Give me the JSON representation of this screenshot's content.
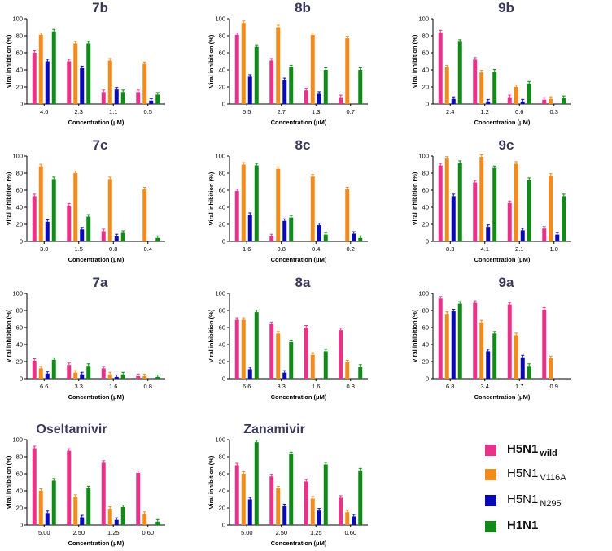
{
  "colors": {
    "H5N1_wild": "#e8338a",
    "H5N1_V116A": "#f28a1c",
    "H5N1_N295": "#0a0ab4",
    "H1N1": "#118a1a"
  },
  "legend": [
    {
      "main": "H5N1",
      "sub": "wild",
      "color": "#e8338a",
      "bold": true
    },
    {
      "main": "H5N1",
      "sub": "V116A",
      "color": "#f28a1c",
      "bold": false
    },
    {
      "main": "H5N1",
      "sub": "N295",
      "color": "#0a0ab4",
      "bold": false
    },
    {
      "main": "H1N1",
      "sub": "",
      "color": "#118a1a",
      "bold": true
    }
  ],
  "chart_data": [
    {
      "type": "bar",
      "title": "7b",
      "xlabel": "Concentration (μM)",
      "ylabel": "Viral inhibition (%)",
      "ylim": [
        0,
        100
      ],
      "yticks": [
        "0",
        "20",
        "40",
        "60",
        "80",
        "100"
      ],
      "categories": [
        "4.6",
        "2.3",
        "1.1",
        "0.5"
      ],
      "series": [
        {
          "name": "H5N1 wild",
          "values": [
            60,
            50,
            14,
            14
          ]
        },
        {
          "name": "H5N1 V116A",
          "values": [
            81,
            71,
            51,
            47
          ]
        },
        {
          "name": "H5N1 N295",
          "values": [
            50,
            42,
            17,
            4
          ]
        },
        {
          "name": "H1N1",
          "values": [
            85,
            71,
            14,
            11
          ]
        }
      ]
    },
    {
      "type": "bar",
      "title": "8b",
      "xlabel": "Concentration (μM)",
      "ylabel": "Viral inhibition (%)",
      "ylim": [
        0,
        100
      ],
      "yticks": [
        "0",
        "20",
        "40",
        "60",
        "80",
        "100"
      ],
      "categories": [
        "5.5",
        "2.7",
        "1.3",
        "0.7"
      ],
      "series": [
        {
          "name": "H5N1 wild",
          "values": [
            81,
            51,
            16,
            8
          ]
        },
        {
          "name": "H5N1 V116A",
          "values": [
            95,
            90,
            81,
            77
          ]
        },
        {
          "name": "H5N1 N295",
          "values": [
            32,
            28,
            12,
            0
          ]
        },
        {
          "name": "H1N1",
          "values": [
            67,
            43,
            40,
            40
          ]
        }
      ]
    },
    {
      "type": "bar",
      "title": "9b",
      "xlabel": "Concentration (μM)",
      "ylabel": "Viral inhibition (%)",
      "ylim": [
        0,
        100
      ],
      "yticks": [
        "0",
        "20",
        "40",
        "60",
        "80",
        "100"
      ],
      "categories": [
        "2.4",
        "1.2",
        "0.6",
        "0.3"
      ],
      "series": [
        {
          "name": "H5N1 wild",
          "values": [
            84,
            52,
            8,
            5
          ]
        },
        {
          "name": "H5N1 V116A",
          "values": [
            43,
            37,
            20,
            6
          ]
        },
        {
          "name": "H5N1 N295",
          "values": [
            6,
            3,
            3,
            0
          ]
        },
        {
          "name": "H1N1",
          "values": [
            73,
            38,
            24,
            7
          ]
        }
      ]
    },
    {
      "type": "bar",
      "title": "7c",
      "xlabel": "Concentration (μM)",
      "ylabel": "Viral inhibition (%)",
      "ylim": [
        0,
        100
      ],
      "yticks": [
        "0",
        "20",
        "40",
        "60",
        "80",
        "100"
      ],
      "categories": [
        "3.0",
        "1.5",
        "0.8",
        "0.4"
      ],
      "series": [
        {
          "name": "H5N1 wild",
          "values": [
            53,
            42,
            12,
            0
          ]
        },
        {
          "name": "H5N1 V116A",
          "values": [
            88,
            80,
            73,
            61
          ]
        },
        {
          "name": "H5N1 N295",
          "values": [
            23,
            14,
            6,
            0
          ]
        },
        {
          "name": "H1N1",
          "values": [
            73,
            29,
            10,
            4
          ]
        }
      ]
    },
    {
      "type": "bar",
      "title": "8c",
      "xlabel": "Concentration (μM)",
      "ylabel": "Viral inhibition (%)",
      "ylim": [
        0,
        100
      ],
      "yticks": [
        "0",
        "20",
        "40",
        "60",
        "80",
        "100"
      ],
      "categories": [
        "1.6",
        "0.8",
        "0.4",
        "0.2"
      ],
      "series": [
        {
          "name": "H5N1 wild",
          "values": [
            59,
            6,
            0,
            0
          ]
        },
        {
          "name": "H5N1 V116A",
          "values": [
            90,
            85,
            76,
            61
          ]
        },
        {
          "name": "H5N1 N295",
          "values": [
            31,
            24,
            19,
            9
          ]
        },
        {
          "name": "H1N1",
          "values": [
            89,
            28,
            8,
            4
          ]
        }
      ]
    },
    {
      "type": "bar",
      "title": "9c",
      "xlabel": "Concentration (μM)",
      "ylabel": "Viral inhibition (%)",
      "ylim": [
        0,
        100
      ],
      "yticks": [
        "0",
        "20",
        "40",
        "60",
        "80",
        "100"
      ],
      "categories": [
        "8.3",
        "4.1",
        "2.1",
        "1.0"
      ],
      "series": [
        {
          "name": "H5N1 wild",
          "values": [
            89,
            69,
            45,
            15
          ]
        },
        {
          "name": "H5N1 V116A",
          "values": [
            97,
            99,
            91,
            77
          ]
        },
        {
          "name": "H5N1 N295",
          "values": [
            53,
            17,
            13,
            8
          ]
        },
        {
          "name": "H1N1",
          "values": [
            92,
            86,
            72,
            53
          ]
        }
      ]
    },
    {
      "type": "bar",
      "title": "7a",
      "xlabel": "Concentration (μM)",
      "ylabel": "Viral inhibition (%)",
      "ylim": [
        0,
        100
      ],
      "yticks": [
        "0",
        "20",
        "40",
        "60",
        "80",
        "100"
      ],
      "categories": [
        "6.6",
        "3.3",
        "1.6",
        "0.8"
      ],
      "series": [
        {
          "name": "H5N1 wild",
          "values": [
            21,
            16,
            12,
            3
          ]
        },
        {
          "name": "H5N1 V116A",
          "values": [
            12,
            7,
            5,
            3
          ]
        },
        {
          "name": "H5N1 N295",
          "values": [
            6,
            5,
            2,
            0
          ]
        },
        {
          "name": "H1N1",
          "values": [
            22,
            15,
            5,
            2
          ]
        }
      ]
    },
    {
      "type": "bar",
      "title": "8a",
      "xlabel": "Concentration (μM)",
      "ylabel": "Viral inhibition (%)",
      "ylim": [
        0,
        100
      ],
      "yticks": [
        "0",
        "20",
        "40",
        "60",
        "80",
        "100"
      ],
      "categories": [
        "6.6",
        "3.3",
        "1.6",
        "0.8"
      ],
      "series": [
        {
          "name": "H5N1 wild",
          "values": [
            69,
            64,
            60,
            57
          ]
        },
        {
          "name": "H5N1 V116A",
          "values": [
            69,
            53,
            28,
            19
          ]
        },
        {
          "name": "H5N1 N295",
          "values": [
            11,
            7,
            0,
            0
          ]
        },
        {
          "name": "H1N1",
          "values": [
            78,
            43,
            32,
            14
          ]
        }
      ]
    },
    {
      "type": "bar",
      "title": "9a",
      "xlabel": "Concentration (μM)",
      "ylabel": "Viral inhibition (%)",
      "ylim": [
        0,
        100
      ],
      "yticks": [
        "0",
        "20",
        "40",
        "60",
        "80",
        "100"
      ],
      "categories": [
        "6.8",
        "3.4",
        "1.7",
        "0.9"
      ],
      "series": [
        {
          "name": "H5N1 wild",
          "values": [
            94,
            89,
            87,
            81
          ]
        },
        {
          "name": "H5N1 V116A",
          "values": [
            76,
            66,
            51,
            24
          ]
        },
        {
          "name": "H5N1 N295",
          "values": [
            79,
            32,
            25,
            0
          ]
        },
        {
          "name": "H1N1",
          "values": [
            88,
            53,
            15,
            0
          ]
        }
      ]
    },
    {
      "type": "bar",
      "title": "Oseltamivir",
      "xlabel": "Concentration (μM)",
      "ylabel": "Viral inhibition (%)",
      "ylim": [
        0,
        100
      ],
      "yticks": [
        "0",
        "20",
        "40",
        "60",
        "80",
        "100"
      ],
      "categories": [
        "5.00",
        "2.50",
        "1.25",
        "0.60"
      ],
      "series": [
        {
          "name": "H5N1 wild",
          "values": [
            90,
            87,
            73,
            61
          ]
        },
        {
          "name": "H5N1 V116A",
          "values": [
            40,
            33,
            19,
            13
          ]
        },
        {
          "name": "H5N1 N295",
          "values": [
            14,
            9,
            6,
            0
          ]
        },
        {
          "name": "H1N1",
          "values": [
            52,
            43,
            21,
            4
          ]
        }
      ]
    },
    {
      "type": "bar",
      "title": "Zanamivir",
      "xlabel": "Concentration (μM)",
      "ylabel": "Viral inhibition (%)",
      "ylim": [
        0,
        100
      ],
      "yticks": [
        "0",
        "20",
        "40",
        "60",
        "80",
        "100"
      ],
      "categories": [
        "5.00",
        "2.50",
        "1.25",
        "0.60"
      ],
      "series": [
        {
          "name": "H5N1 wild",
          "values": [
            70,
            57,
            51,
            32
          ]
        },
        {
          "name": "H5N1 V116A",
          "values": [
            60,
            43,
            31,
            15
          ]
        },
        {
          "name": "H5N1 N295",
          "values": [
            30,
            22,
            17,
            10
          ]
        },
        {
          "name": "H1N1",
          "values": [
            97,
            83,
            71,
            64
          ]
        }
      ]
    }
  ]
}
